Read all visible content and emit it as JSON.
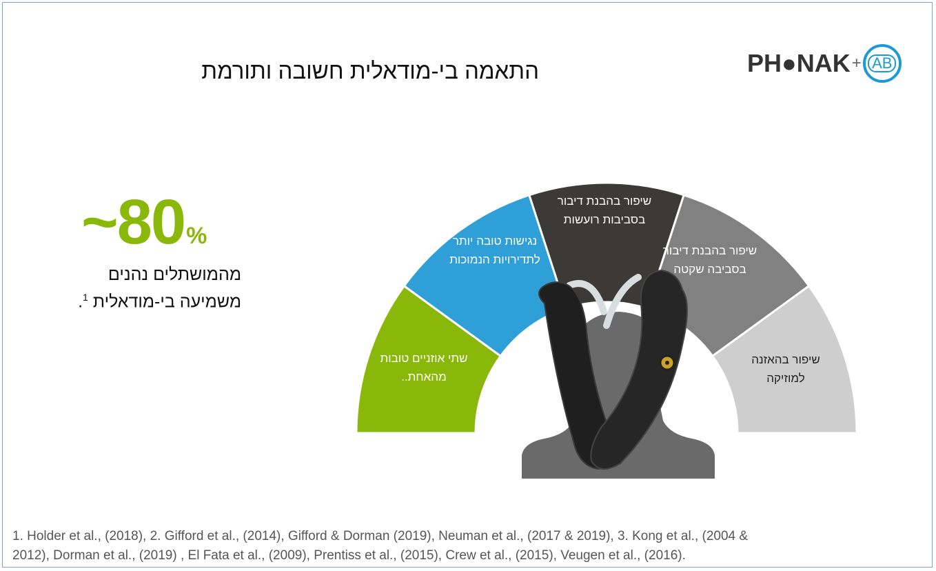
{
  "logo": {
    "brand": "PH●NAK",
    "plus": "+",
    "partner": "AB"
  },
  "title": "התאמה בי-מודאלית חשובה ותורמת",
  "stat": {
    "value": "~80",
    "unit": "%",
    "caption_line1": "מהמושתלים נהנים",
    "caption_line2": "משמיעה בי-מודאלית",
    "footnote_ref": "1",
    "caption_end": "."
  },
  "segments": [
    {
      "line1": "שתי אוזניים טובות",
      "line2": "מהאחת..",
      "color": "#8ab80a"
    },
    {
      "line1": "נגישות טובה יותר",
      "line2": "לתדירויות הנמוכות",
      "color": "#2f9fd7"
    },
    {
      "line1": "שיפור בהבנת דיבור",
      "line2": "בסביבות רועשות",
      "color": "#3c3a37"
    },
    {
      "line1": "שיפור בהבנת דיבור",
      "line2": "בסביבה שקטה",
      "color": "#818181"
    },
    {
      "line1": "שיפור בהאזנה",
      "line2": "למוזיקה",
      "color": "#cecece"
    }
  ],
  "footer": {
    "line1": "1. Holder et al., (2018), 2. Gifford et al., (2014), Gifford & Dorman (2019), Neuman et al., (2017 & 2019), 3. Kong et al., (2004 &",
    "line2": "2012), Dorman et al., (2019) , El Fata et al., (2009), Prentiss et al., (2015), Crew et al., (2015), Veugen et al., (2016)."
  }
}
